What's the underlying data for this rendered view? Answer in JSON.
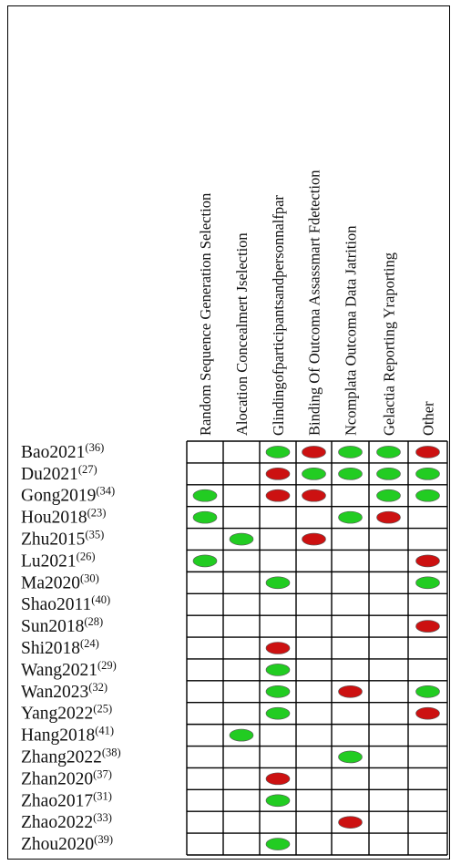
{
  "colors": {
    "low": "#22cc22",
    "high": "#cc1111",
    "grid": "#000000"
  },
  "chart_data": {
    "type": "table",
    "columns": [
      "Random Sequence Generation Selection",
      "Alocation Concealmert Jselection",
      "Glindingofparticipantsandpersonnalfpar",
      "Binding Of Outcoma Assassmart Fdetection",
      "Ncomplata Outcoma Data Jatrition",
      "Gelactia Reporting Yraporting",
      "Other"
    ],
    "rows": [
      {
        "study": "Bao2021",
        "ref": "(36)",
        "cells": [
          "",
          "",
          "low",
          "high",
          "low",
          "low",
          "high"
        ]
      },
      {
        "study": "Du2021",
        "ref": "(27)",
        "cells": [
          "",
          "",
          "high",
          "low",
          "low",
          "low",
          "low"
        ]
      },
      {
        "study": "Gong2019",
        "ref": "(34)",
        "cells": [
          "low",
          "",
          "high",
          "high",
          "",
          "low",
          "low"
        ]
      },
      {
        "study": "Hou2018",
        "ref": "(23)",
        "cells": [
          "low",
          "",
          "",
          "",
          "low",
          "high",
          ""
        ]
      },
      {
        "study": "Zhu2015",
        "ref": "(35)",
        "cells": [
          "",
          "low",
          "",
          "high",
          "",
          "",
          ""
        ]
      },
      {
        "study": "Lu2021",
        "ref": "(26)",
        "cells": [
          "low",
          "",
          "",
          "",
          "",
          "",
          "high"
        ]
      },
      {
        "study": "Ma2020",
        "ref": "(30)",
        "cells": [
          "",
          "",
          "low",
          "",
          "",
          "",
          "low"
        ]
      },
      {
        "study": "Shao2011",
        "ref": "(40)",
        "cells": [
          "",
          "",
          "",
          "",
          "",
          "",
          ""
        ]
      },
      {
        "study": "Sun2018",
        "ref": "(28)",
        "cells": [
          "",
          "",
          "",
          "",
          "",
          "",
          "high"
        ]
      },
      {
        "study": "Shi2018",
        "ref": "(24)",
        "cells": [
          "",
          "",
          "high",
          "",
          "",
          "",
          ""
        ]
      },
      {
        "study": "Wang2021",
        "ref": "(29)",
        "cells": [
          "",
          "",
          "low",
          "",
          "",
          "",
          ""
        ]
      },
      {
        "study": "Wan2023",
        "ref": "(32)",
        "cells": [
          "",
          "",
          "low",
          "",
          "high",
          "",
          "low"
        ]
      },
      {
        "study": "Yang2022",
        "ref": "(25)",
        "cells": [
          "",
          "",
          "low",
          "",
          "",
          "",
          "high"
        ]
      },
      {
        "study": "Hang2018",
        "ref": "(41)",
        "cells": [
          "",
          "low",
          "",
          "",
          "",
          "",
          ""
        ]
      },
      {
        "study": "Zhang2022",
        "ref": "(38)",
        "cells": [
          "",
          "",
          "",
          "",
          "low",
          "",
          ""
        ]
      },
      {
        "study": "Zhan2020",
        "ref": "(37)",
        "cells": [
          "",
          "",
          "high",
          "",
          "",
          "",
          ""
        ]
      },
      {
        "study": "Zhao2017",
        "ref": "(31)",
        "cells": [
          "",
          "",
          "low",
          "",
          "",
          "",
          ""
        ]
      },
      {
        "study": "Zhao2022",
        "ref": "(33)",
        "cells": [
          "",
          "",
          "",
          "",
          "high",
          "",
          ""
        ]
      },
      {
        "study": "Zhou2020",
        "ref": "(39)",
        "cells": [
          "",
          "",
          "low",
          "",
          "",
          "",
          ""
        ]
      }
    ]
  }
}
